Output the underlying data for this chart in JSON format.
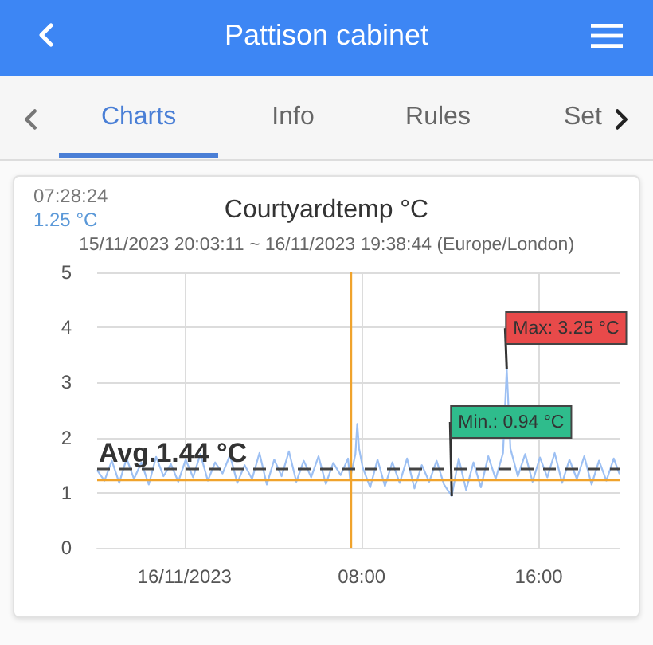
{
  "chart_data": {
    "type": "line",
    "title": "Courtyardtemp °C",
    "subtitle": "15/11/2023 20:03:11 ~ 16/11/2023 19:38:44 (Europe/London)",
    "x": [
      "2023-11-15T20:04",
      "2023-11-15T20:23",
      "2023-11-15T20:43",
      "2023-11-15T21:03",
      "2023-11-15T21:23",
      "2023-11-15T21:43",
      "2023-11-15T22:03",
      "2023-11-15T22:23",
      "2023-11-15T22:43",
      "2023-11-15T23:03",
      "2023-11-15T23:23",
      "2023-11-15T23:43",
      "2023-11-16T00:03",
      "2023-11-16T00:23",
      "2023-11-16T00:43",
      "2023-11-16T01:03",
      "2023-11-16T01:23",
      "2023-11-16T01:43",
      "2023-11-16T02:03",
      "2023-11-16T02:23",
      "2023-11-16T02:43",
      "2023-11-16T03:03",
      "2023-11-16T03:23",
      "2023-11-16T03:43",
      "2023-11-16T04:03",
      "2023-11-16T04:23",
      "2023-11-16T04:43",
      "2023-11-16T05:03",
      "2023-11-16T05:23",
      "2023-11-16T05:43",
      "2023-11-16T06:03",
      "2023-11-16T06:23",
      "2023-11-16T06:43",
      "2023-11-16T07:03",
      "2023-11-16T07:23",
      "2023-11-16T07:28:24",
      "2023-11-16T07:43",
      "2023-11-16T07:48",
      "2023-11-16T07:53",
      "2023-11-16T08:03",
      "2023-11-16T08:23",
      "2023-11-16T08:43",
      "2023-11-16T09:03",
      "2023-11-16T09:23",
      "2023-11-16T09:43",
      "2023-11-16T10:03",
      "2023-11-16T10:23",
      "2023-11-16T10:43",
      "2023-11-16T11:03",
      "2023-11-16T11:23",
      "2023-11-16T11:43",
      "2023-11-16T12:04",
      "2023-11-16T12:23",
      "2023-11-16T12:43",
      "2023-11-16T13:03",
      "2023-11-16T13:23",
      "2023-11-16T13:43",
      "2023-11-16T14:03",
      "2023-11-16T14:23",
      "2023-11-16T14:33",
      "2023-11-16T14:43",
      "2023-11-16T15:03",
      "2023-11-16T15:23",
      "2023-11-16T15:43",
      "2023-11-16T16:03",
      "2023-11-16T16:23",
      "2023-11-16T16:43",
      "2023-11-16T17:03",
      "2023-11-16T17:23",
      "2023-11-16T17:43",
      "2023-11-16T18:03",
      "2023-11-16T18:23",
      "2023-11-16T18:43",
      "2023-11-16T19:03",
      "2023-11-16T19:23",
      "2023-11-16T19:38"
    ],
    "values": [
      1.4,
      1.22,
      1.58,
      1.18,
      1.62,
      1.25,
      1.55,
      1.15,
      1.65,
      1.3,
      1.52,
      1.2,
      1.6,
      1.28,
      1.7,
      1.22,
      1.55,
      1.35,
      1.68,
      1.18,
      1.5,
      1.25,
      1.72,
      1.15,
      1.6,
      1.3,
      1.75,
      1.2,
      1.58,
      1.28,
      1.66,
      1.16,
      1.54,
      1.32,
      1.62,
      1.25,
      1.7,
      2.25,
      1.8,
      1.45,
      1.1,
      1.6,
      1.12,
      1.55,
      1.18,
      1.62,
      1.08,
      1.5,
      1.2,
      1.58,
      1.15,
      0.94,
      1.62,
      1.05,
      1.55,
      1.1,
      1.66,
      1.25,
      1.72,
      3.25,
      1.8,
      1.3,
      1.7,
      1.2,
      1.64,
      1.28,
      1.72,
      1.18,
      1.6,
      1.25,
      1.66,
      1.15,
      1.58,
      1.22,
      1.62,
      1.35
    ],
    "color": "#9dc0f3",
    "xlim": [
      "2023-11-15T20:03:11",
      "2023-11-16T19:38:44"
    ],
    "xticks": [
      {
        "value": "2023-11-16T00:00",
        "label": "16/11/2023"
      },
      {
        "value": "2023-11-16T08:00",
        "label": "08:00"
      },
      {
        "value": "2023-11-16T16:00",
        "label": "16:00"
      }
    ],
    "ylim": [
      0,
      5
    ],
    "yticks": [
      0,
      1,
      2,
      3,
      4,
      5
    ],
    "grid": true,
    "ref_lines": [
      {
        "axis": "x",
        "value": "2023-11-16T07:28:24",
        "color": "#f0a32c"
      },
      {
        "axis": "y",
        "value": 1.25,
        "color": "#f0a32c"
      },
      {
        "axis": "y",
        "value": 1.44,
        "label": "Avg.1.44 °C",
        "color": "#444444",
        "line_style": "dashed"
      }
    ],
    "annotations": [
      "Pattison cabinet",
      "Charts",
      "Info",
      "Rules",
      "Set",
      "07:28:24",
      "1.25 °C",
      {
        "text": "Max: 3.25 °C",
        "x": "2023-11-16T14:33",
        "y": 3.25
      },
      {
        "text": "Min.: 0.94 °C",
        "x": "2023-11-16T12:04",
        "y": 0.94
      }
    ]
  }
}
